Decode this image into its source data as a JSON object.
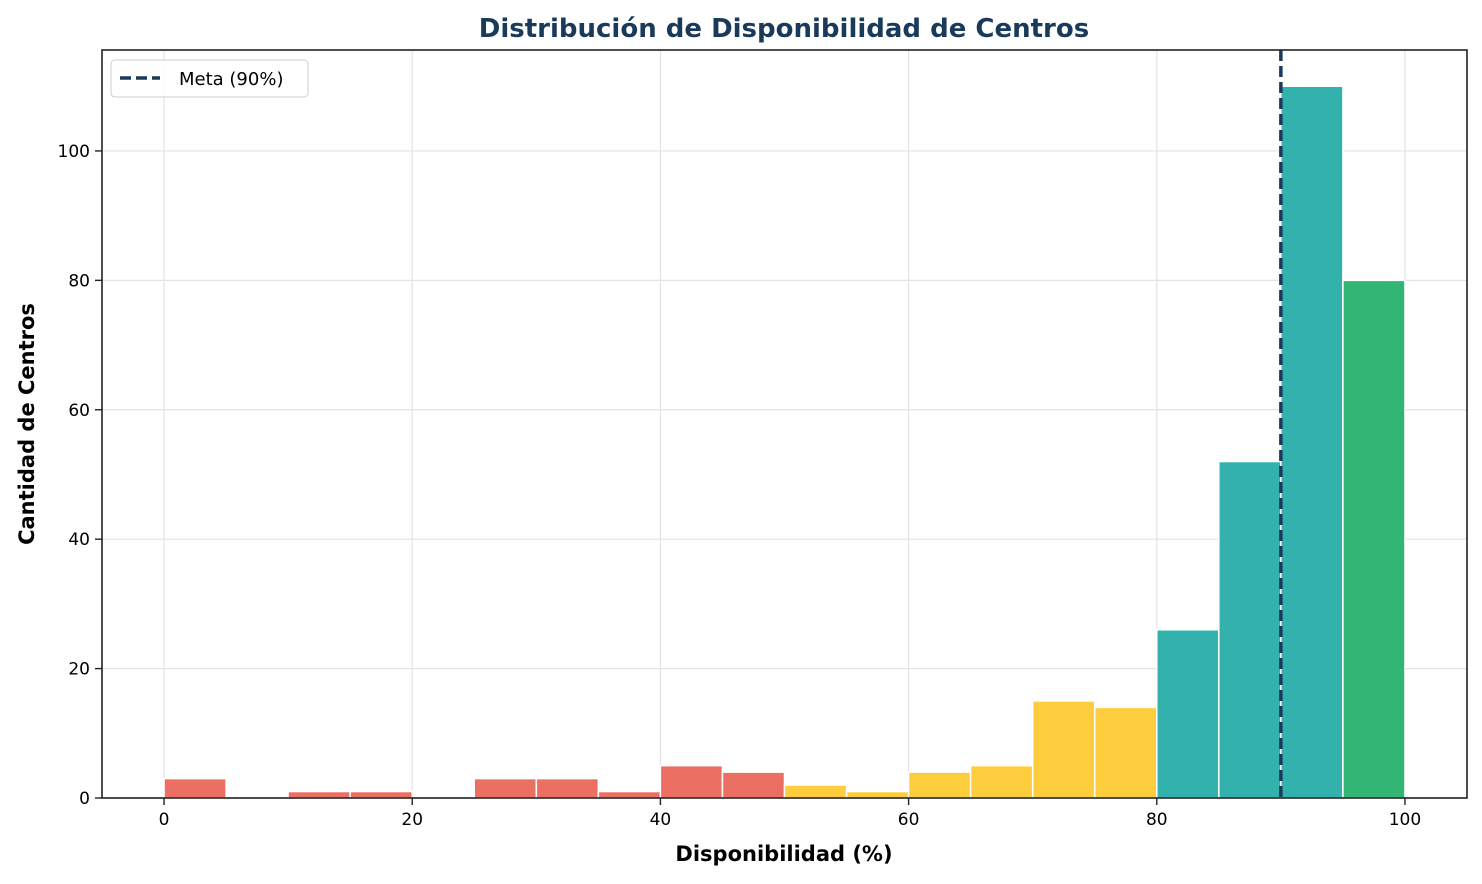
{
  "chart_data": {
    "type": "bar",
    "title": "Distribución de Disponibilidad de Centros",
    "xlabel": "Disponibilidad (%)",
    "ylabel": "Cantidad de Centros",
    "xlim": [
      -5,
      105
    ],
    "ylim": [
      0,
      115.6
    ],
    "xticks": [
      0,
      20,
      40,
      60,
      80,
      100
    ],
    "yticks": [
      0,
      20,
      40,
      60,
      80,
      100
    ],
    "grid": true,
    "bin_width": 5,
    "bins": [
      {
        "start": 0,
        "count": 3,
        "color": "#eb7063"
      },
      {
        "start": 5,
        "count": 0,
        "color": "#eb7063"
      },
      {
        "start": 10,
        "count": 1,
        "color": "#eb7063"
      },
      {
        "start": 15,
        "count": 1,
        "color": "#eb7063"
      },
      {
        "start": 20,
        "count": 0,
        "color": "#eb7063"
      },
      {
        "start": 25,
        "count": 3,
        "color": "#eb7063"
      },
      {
        "start": 30,
        "count": 3,
        "color": "#eb7063"
      },
      {
        "start": 35,
        "count": 1,
        "color": "#eb7063"
      },
      {
        "start": 40,
        "count": 5,
        "color": "#eb7063"
      },
      {
        "start": 45,
        "count": 4,
        "color": "#eb7063"
      },
      {
        "start": 50,
        "count": 2,
        "color": "#fdcd3e"
      },
      {
        "start": 55,
        "count": 1,
        "color": "#fdcd3e"
      },
      {
        "start": 60,
        "count": 4,
        "color": "#fdcd3e"
      },
      {
        "start": 65,
        "count": 5,
        "color": "#fdcd3e"
      },
      {
        "start": 70,
        "count": 15,
        "color": "#fdcd3e"
      },
      {
        "start": 75,
        "count": 14,
        "color": "#fdcd3e"
      },
      {
        "start": 80,
        "count": 26,
        "color": "#33b2ad"
      },
      {
        "start": 85,
        "count": 52,
        "color": "#33b2ad"
      },
      {
        "start": 90,
        "count": 110,
        "color": "#33b2ad"
      },
      {
        "start": 95,
        "count": 80,
        "color": "#33b673"
      }
    ],
    "reference_line": {
      "x": 90,
      "label": "Meta (90%)",
      "color": "#1a3a5c",
      "style": "dashed"
    },
    "legend": {
      "placement": "top-left",
      "entries": [
        "Meta (90%)"
      ]
    },
    "title_color": "#1a3a5c"
  }
}
